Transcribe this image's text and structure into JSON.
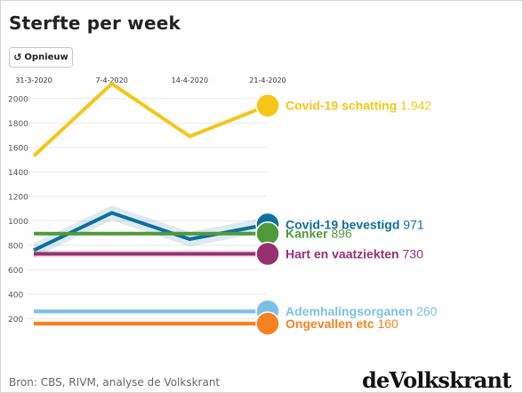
{
  "page": {
    "title": "Sterfte per week"
  },
  "controls": {
    "replay_label": "Opnieuw",
    "replay_icon": "rotate-ccw-icon"
  },
  "footer": {
    "source": "Bron: CBS, RIVM, analyse de Volkskrant",
    "logo_text": "deVolkskrant"
  },
  "chart_data": {
    "type": "line",
    "title": "Sterfte per week",
    "xlabel": "",
    "ylabel": "",
    "x": [
      "31-3-2020",
      "7-4-2020",
      "14-4-2020",
      "21-4-2020"
    ],
    "x_ticks": [
      "31-3-2020",
      "7-4-2020",
      "14-4-2020",
      "21-4-2020"
    ],
    "ylim": [
      0,
      2100
    ],
    "y_ticks": [
      200,
      400,
      600,
      800,
      1000,
      1200,
      1400,
      1600,
      1800,
      2000
    ],
    "grid": true,
    "legend": "end-of-line labels",
    "series": [
      {
        "name": "Covid-19 schatting",
        "label": "1.942",
        "color": "#f5c518",
        "values": [
          1530,
          2120,
          1690,
          1942
        ],
        "band": 0
      },
      {
        "name": "Covid-19 bevestigd",
        "label": "971",
        "color": "#0d6e9f",
        "values": [
          760,
          1065,
          850,
          971
        ],
        "band": 60
      },
      {
        "name": "Kanker",
        "label": "896",
        "color": "#4e9a3a",
        "values": [
          896,
          896,
          896,
          896
        ],
        "band": 0
      },
      {
        "name": "Hart en vaatziekten",
        "label": "730",
        "color": "#96306e",
        "values": [
          730,
          730,
          730,
          730
        ],
        "band": 30
      },
      {
        "name": "Ademhalingsorganen",
        "label": "260",
        "color": "#7cc0e8",
        "values": [
          260,
          260,
          260,
          260
        ],
        "band": 25
      },
      {
        "name": "Ongevallen etc",
        "label": "160",
        "color": "#f5821f",
        "values": [
          160,
          160,
          160,
          160
        ],
        "band": 25
      }
    ]
  }
}
